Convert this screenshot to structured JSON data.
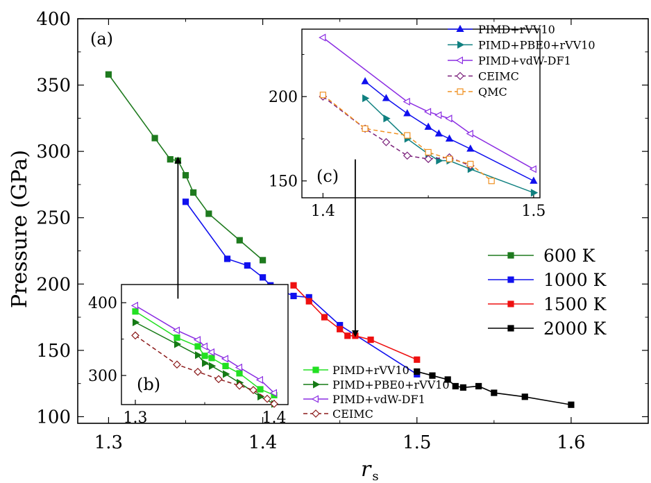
{
  "chart_data": [
    {
      "panel": "main",
      "type": "line",
      "label": "(a)",
      "xlabel": "r",
      "xlabel_sub": "s",
      "ylabel": "Pressure (GPa)",
      "xlim": [
        1.28,
        1.65
      ],
      "ylim": [
        95,
        400
      ],
      "xticks": [
        "1.3",
        "1.4",
        "1.5",
        "1.6"
      ],
      "xtick_values": [
        1.3,
        1.4,
        1.5,
        1.6
      ],
      "yticks": [
        "100",
        "150",
        "200",
        "250",
        "300",
        "350",
        "400"
      ],
      "ytick_values": [
        100,
        150,
        200,
        250,
        300,
        350,
        400
      ],
      "legend_position": "right",
      "series": [
        {
          "name": "600 K",
          "color": "#1e7a1e",
          "marker": "square",
          "x": [
            1.3,
            1.33,
            1.34,
            1.345,
            1.35,
            1.355,
            1.365,
            1.385,
            1.4
          ],
          "y": [
            358,
            310,
            294,
            293,
            282,
            269,
            253,
            233,
            218
          ]
        },
        {
          "name": "1000 K",
          "color": "#1010ee",
          "marker": "square",
          "x": [
            1.35,
            1.377,
            1.39,
            1.4,
            1.405,
            1.41,
            1.42,
            1.43,
            1.45,
            1.5
          ],
          "y": [
            262,
            219,
            214,
            205,
            199,
            196,
            191,
            190,
            169,
            132
          ]
        },
        {
          "name": "1500 K",
          "color": "#ee1010",
          "marker": "square",
          "x": [
            1.42,
            1.43,
            1.44,
            1.45,
            1.455,
            1.46,
            1.47,
            1.5
          ],
          "y": [
            199,
            187,
            175,
            166,
            161,
            161,
            158,
            143
          ]
        },
        {
          "name": "2000 K",
          "color": "#000000",
          "marker": "square",
          "x": [
            1.5,
            1.51,
            1.52,
            1.525,
            1.53,
            1.54,
            1.55,
            1.57,
            1.6
          ],
          "y": [
            134,
            131,
            128,
            123,
            122,
            123,
            118,
            115,
            109
          ]
        }
      ],
      "arrows": [
        {
          "from": [
            1.345,
            189
          ],
          "to": [
            1.345,
            295
          ]
        },
        {
          "from": [
            1.46,
            294
          ],
          "to": [
            1.46,
            161
          ]
        }
      ]
    },
    {
      "panel": "inset-b",
      "type": "line",
      "label": "(b)",
      "xlim": [
        1.29,
        1.41
      ],
      "ylim": [
        260,
        425
      ],
      "xticks": [
        "1.3",
        "1.4"
      ],
      "xtick_values": [
        1.3,
        1.4
      ],
      "yticks": [
        "300",
        "400"
      ],
      "ytick_values": [
        300,
        400
      ],
      "series": [
        {
          "name": "PIMD+rVV10",
          "color": "#22e022",
          "marker": "square-filled",
          "dashed": false,
          "x": [
            1.3,
            1.33,
            1.345,
            1.35,
            1.355,
            1.365,
            1.375,
            1.39,
            1.4
          ],
          "y": [
            388,
            352,
            340,
            327,
            324,
            313,
            303,
            281,
            273
          ]
        },
        {
          "name": "PIMD+PBE0+rVV10",
          "color": "#157a15",
          "marker": "triangle-right-filled",
          "dashed": false,
          "x": [
            1.3,
            1.33,
            1.345,
            1.35,
            1.355,
            1.365,
            1.375,
            1.39,
            1.4
          ],
          "y": [
            373,
            343,
            328,
            317,
            313,
            302,
            290,
            271,
            261
          ]
        },
        {
          "name": "PIMD+vdW-DF1",
          "color": "#8a2be2",
          "marker": "triangle-left-open",
          "dashed": false,
          "x": [
            1.3,
            1.33,
            1.345,
            1.35,
            1.355,
            1.365,
            1.375,
            1.39,
            1.4
          ],
          "y": [
            396,
            362,
            349,
            340,
            332,
            323,
            311,
            294,
            276
          ]
        },
        {
          "name": "CEIMC",
          "color": "#8b1a1a",
          "marker": "diamond-open",
          "dashed": true,
          "x": [
            1.3,
            1.33,
            1.345,
            1.36,
            1.375,
            1.385,
            1.395,
            1.4
          ],
          "y": [
            355,
            315,
            305,
            295,
            286,
            280,
            268,
            261
          ]
        }
      ]
    },
    {
      "panel": "inset-c",
      "type": "line",
      "label": "(c)",
      "xlim": [
        1.39,
        1.503
      ],
      "ylim": [
        140,
        240
      ],
      "xticks": [
        "1.4",
        "1.5"
      ],
      "xtick_values": [
        1.4,
        1.5
      ],
      "yticks": [
        "150",
        "200"
      ],
      "ytick_values": [
        150,
        200
      ],
      "series": [
        {
          "name": "PIMD+rVV10",
          "color": "#1010ee",
          "marker": "triangle-up-filled",
          "dashed": false,
          "x": [
            1.42,
            1.43,
            1.44,
            1.45,
            1.455,
            1.46,
            1.47,
            1.5
          ],
          "y": [
            209,
            199,
            190,
            182,
            178,
            175,
            169,
            150
          ]
        },
        {
          "name": "PIMD+PBE0+rVV10",
          "color": "#108080",
          "marker": "triangle-right-filled",
          "dashed": false,
          "x": [
            1.42,
            1.43,
            1.44,
            1.45,
            1.455,
            1.46,
            1.47,
            1.5
          ],
          "y": [
            199,
            187,
            175,
            166,
            162,
            162,
            157,
            143
          ]
        },
        {
          "name": "PIMD+vdW-DF1",
          "color": "#8a2be2",
          "marker": "triangle-left-open",
          "dashed": false,
          "x": [
            1.4,
            1.44,
            1.45,
            1.455,
            1.46,
            1.47,
            1.5
          ],
          "y": [
            235,
            197,
            191,
            189,
            187,
            178,
            157
          ]
        },
        {
          "name": "CEIMC",
          "color": "#7a1f7a",
          "marker": "diamond-open",
          "dashed": true,
          "x": [
            1.4,
            1.42,
            1.43,
            1.44,
            1.45,
            1.46,
            1.47
          ],
          "y": [
            200,
            181,
            173,
            165,
            163,
            164,
            159
          ]
        },
        {
          "name": "QMC",
          "color": "#f09020",
          "marker": "square-open",
          "dashed": true,
          "x": [
            1.4,
            1.42,
            1.44,
            1.45,
            1.46,
            1.47,
            1.48
          ],
          "y": [
            201,
            181,
            177,
            167,
            163,
            160,
            150
          ]
        }
      ]
    }
  ]
}
